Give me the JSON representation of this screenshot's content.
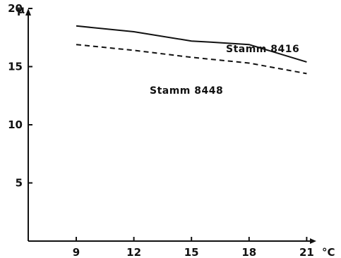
{
  "chart_data": {
    "type": "line",
    "title": "",
    "xlabel": "°C",
    "ylabel": "μ",
    "xlim": [
      6.5,
      21.5
    ],
    "ylim": [
      0,
      20
    ],
    "x_ticks": [
      9,
      12,
      15,
      18,
      21
    ],
    "y_ticks": [
      5,
      10,
      15,
      20
    ],
    "grid": false,
    "series": [
      {
        "name": "Stamm 8416",
        "style": "solid",
        "x": [
          9,
          12,
          15,
          16,
          18,
          21
        ],
        "y": [
          18.5,
          18.0,
          17.2,
          17.1,
          16.9,
          15.4
        ]
      },
      {
        "name": "Stamm 8448",
        "style": "dashed",
        "x": [
          9,
          12,
          15,
          18,
          21
        ],
        "y": [
          16.9,
          16.4,
          15.8,
          15.3,
          14.4
        ]
      }
    ]
  }
}
